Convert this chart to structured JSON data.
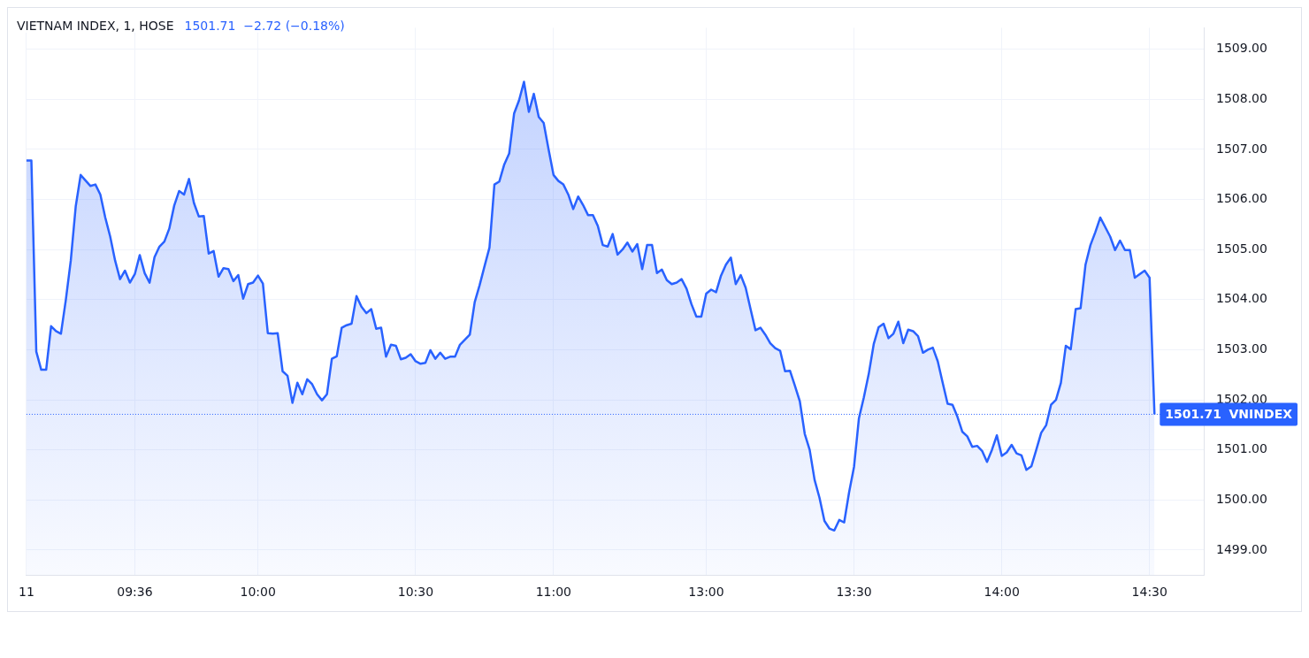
{
  "chart_data": {
    "type": "area",
    "title": "VIETNAM INDEX, 1, HOSE",
    "subtitle": "1501.71  −2.72 (−0.18%)",
    "categories": [
      "11",
      null,
      null,
      null,
      null,
      null,
      null,
      null,
      null,
      null,
      null,
      null,
      null,
      null,
      null,
      null,
      null,
      null,
      null,
      null,
      null,
      null,
      "09:36",
      null,
      null,
      null,
      null,
      null,
      null,
      null,
      null,
      null,
      null,
      null,
      null,
      null,
      null,
      null,
      null,
      null,
      null,
      null,
      null,
      null,
      null,
      null,
      null,
      "10:00",
      null,
      null,
      null,
      null,
      null,
      null,
      null,
      null,
      null,
      null,
      null,
      null,
      null,
      null,
      null,
      null,
      null,
      null,
      null,
      null,
      null,
      null,
      null,
      null,
      null,
      null,
      null,
      null,
      null,
      null,
      null,
      "10:30",
      null,
      null,
      null,
      null,
      null,
      null,
      null,
      null,
      null,
      null,
      null,
      null,
      null,
      null,
      null,
      null,
      null,
      null,
      null,
      null,
      null,
      null,
      null,
      null,
      null,
      null,
      null,
      "11:00",
      null,
      null,
      null,
      null,
      null,
      null,
      null,
      null,
      null,
      null,
      null,
      null,
      null,
      null,
      null,
      null,
      null,
      null,
      null,
      null,
      null,
      null,
      null,
      null,
      null,
      null,
      null,
      null,
      null,
      null,
      "13:00",
      null,
      null,
      null,
      null,
      null,
      null,
      null,
      null,
      null,
      null,
      null,
      null,
      null,
      null,
      null,
      null,
      null,
      null,
      null,
      null,
      null,
      null,
      null,
      null,
      null,
      null,
      null,
      null,
      null,
      "13:30",
      null,
      null,
      null,
      null,
      null,
      null,
      null,
      null,
      null,
      null,
      null,
      null,
      null,
      null,
      null,
      null,
      null,
      null,
      null,
      null,
      null,
      null,
      null,
      null,
      null,
      null,
      null,
      null,
      null,
      "14:00",
      null,
      null,
      null,
      null,
      null,
      null,
      null,
      null,
      null,
      null,
      null,
      null,
      null,
      null,
      null,
      null,
      null,
      null,
      null,
      null,
      null,
      null,
      null,
      null,
      null,
      null,
      null,
      null,
      null,
      "14:30",
      null,
      null,
      null,
      null,
      null,
      null,
      null,
      null,
      null,
      null,
      null
    ],
    "series": [
      {
        "color": "#2962ff",
        "values": [
          1506.78,
          1506.78,
          1502.96,
          1502.6,
          1502.6,
          1503.47,
          1503.37,
          1503.32,
          1504.0,
          1504.78,
          1505.86,
          1506.49,
          1506.38,
          1506.27,
          1506.3,
          1506.1,
          1505.64,
          1505.26,
          1504.78,
          1504.41,
          1504.58,
          1504.34,
          1504.51,
          1504.89,
          1504.53,
          1504.34,
          1504.85,
          1505.06,
          1505.16,
          1505.42,
          1505.88,
          1506.17,
          1506.1,
          1506.41,
          1505.93,
          1505.66,
          1505.67,
          1504.92,
          1504.97,
          1504.46,
          1504.63,
          1504.61,
          1504.37,
          1504.49,
          1504.02,
          1504.31,
          1504.34,
          1504.48,
          1504.32,
          1503.33,
          1503.32,
          1503.33,
          1502.57,
          1502.48,
          1501.94,
          1502.34,
          1502.11,
          1502.41,
          1502.31,
          1502.11,
          1501.99,
          1502.11,
          1502.82,
          1502.87,
          1503.44,
          1503.49,
          1503.52,
          1504.07,
          1503.86,
          1503.73,
          1503.81,
          1503.42,
          1503.44,
          1502.86,
          1503.1,
          1503.08,
          1502.81,
          1502.84,
          1502.91,
          1502.77,
          1502.72,
          1502.74,
          1502.99,
          1502.82,
          1502.94,
          1502.82,
          1502.86,
          1502.86,
          1503.1,
          1503.2,
          1503.3,
          1503.95,
          1504.29,
          1504.67,
          1505.04,
          1506.3,
          1506.36,
          1506.7,
          1506.92,
          1507.72,
          1507.98,
          1508.35,
          1507.75,
          1508.11,
          1507.65,
          1507.53,
          1507.0,
          1506.49,
          1506.37,
          1506.3,
          1506.1,
          1505.81,
          1506.06,
          1505.89,
          1505.69,
          1505.69,
          1505.47,
          1505.09,
          1505.06,
          1505.31,
          1504.9,
          1505.0,
          1505.14,
          1504.96,
          1505.11,
          1504.61,
          1505.09,
          1505.09,
          1504.53,
          1504.6,
          1504.39,
          1504.31,
          1504.34,
          1504.41,
          1504.22,
          1503.91,
          1503.66,
          1503.66,
          1504.12,
          1504.2,
          1504.15,
          1504.48,
          1504.7,
          1504.84,
          1504.31,
          1504.49,
          1504.24,
          1503.81,
          1503.39,
          1503.44,
          1503.3,
          1503.13,
          1503.03,
          1502.98,
          1502.57,
          1502.58,
          1502.28,
          1501.97,
          1501.32,
          1501.0,
          1500.4,
          1500.04,
          1499.58,
          1499.43,
          1499.39,
          1499.6,
          1499.55,
          1500.15,
          1500.66,
          1501.63,
          1502.05,
          1502.52,
          1503.11,
          1503.45,
          1503.52,
          1503.23,
          1503.32,
          1503.56,
          1503.13,
          1503.4,
          1503.37,
          1503.27,
          1502.94,
          1503.0,
          1503.04,
          1502.77,
          1502.34,
          1501.92,
          1501.9,
          1501.66,
          1501.36,
          1501.27,
          1501.06,
          1501.08,
          1500.98,
          1500.76,
          1501.0,
          1501.29,
          1500.88,
          1500.95,
          1501.1,
          1500.93,
          1500.89,
          1500.6,
          1500.67,
          1501.0,
          1501.34,
          1501.49,
          1501.9,
          1502.0,
          1502.34,
          1503.08,
          1503.01,
          1503.81,
          1503.83,
          1504.7,
          1505.09,
          1505.35,
          1505.64,
          1505.45,
          1505.26,
          1504.99,
          1505.18,
          1504.99,
          1504.99,
          1504.44,
          1504.51,
          1504.58,
          1504.44,
          1501.71,
          null,
          null,
          null,
          null,
          null,
          null,
          null,
          null,
          null,
          null
        ],
        "value_labels": [
          null,
          null,
          null,
          null,
          null,
          null,
          null,
          null,
          null,
          null,
          null,
          null,
          null,
          null,
          null,
          null,
          null,
          null,
          null,
          null,
          null,
          null,
          null,
          null,
          null,
          null,
          null,
          null,
          null,
          null,
          null,
          null,
          null,
          null,
          null,
          null,
          null,
          null,
          null,
          null,
          null,
          null,
          null,
          null,
          null,
          null,
          null,
          null,
          null,
          null,
          null,
          null,
          null,
          null,
          null,
          null,
          null,
          null,
          null,
          null,
          null,
          null,
          null,
          null,
          null,
          null,
          null,
          null,
          null,
          null,
          null,
          null,
          null,
          null,
          null,
          null,
          null,
          null,
          null,
          null,
          null,
          null,
          null,
          null,
          null,
          null,
          null,
          null,
          null,
          null,
          null,
          null,
          null,
          null,
          null,
          null,
          null,
          null,
          null,
          null,
          null,
          null,
          null,
          null,
          null,
          null,
          null,
          null,
          null,
          null,
          null,
          null,
          null,
          null,
          null,
          null,
          null,
          null,
          null,
          null,
          null,
          null,
          null,
          null,
          null,
          null,
          null,
          null,
          null,
          null,
          null,
          null,
          null,
          null,
          null,
          null,
          null,
          null,
          null,
          null,
          null,
          null,
          null,
          null,
          null,
          null,
          null,
          null,
          null,
          null,
          null,
          null,
          null,
          null,
          null,
          null,
          null,
          null,
          null,
          null,
          null,
          null,
          null,
          null,
          null,
          null,
          null,
          null,
          null,
          null,
          null,
          null,
          null,
          null,
          null,
          null,
          null,
          null,
          null,
          null,
          null,
          null,
          null,
          null,
          null,
          null,
          null,
          null,
          null,
          null,
          null,
          null,
          null,
          null,
          null,
          null,
          null,
          null,
          null,
          null,
          null,
          null,
          null,
          null,
          null,
          null,
          null,
          null,
          null,
          null,
          null,
          null,
          null,
          null,
          null,
          null,
          null,
          null,
          null,
          null,
          null,
          null,
          null,
          null,
          null,
          null,
          null,
          null,
          null,
          "1501.71",
          null,
          null,
          null,
          null,
          null,
          null,
          null,
          null,
          null,
          null
        ]
      }
    ],
    "ylim": [
      1498.5,
      1509.43
    ],
    "yticks": [
      {
        "value": 1499,
        "label": "1499.00"
      },
      {
        "value": 1500,
        "label": "1500.00"
      },
      {
        "value": 1501,
        "label": "1501.00"
      },
      {
        "value": 1502,
        "label": "1502.00"
      },
      {
        "value": 1503,
        "label": "1503.00"
      },
      {
        "value": 1504,
        "label": "1504.00"
      },
      {
        "value": 1505,
        "label": "1505.00"
      },
      {
        "value": 1506,
        "label": "1506.00"
      },
      {
        "value": 1507,
        "label": "1507.00"
      },
      {
        "value": 1508,
        "label": "1508.00"
      },
      {
        "value": 1509,
        "label": "1509.00"
      }
    ],
    "ref_lines": [
      {
        "axis": "y",
        "value": 1501.71,
        "label": "VNINDEX",
        "color": "#2962ff",
        "line_style": "dotted"
      }
    ],
    "grid": true,
    "legend": false
  }
}
